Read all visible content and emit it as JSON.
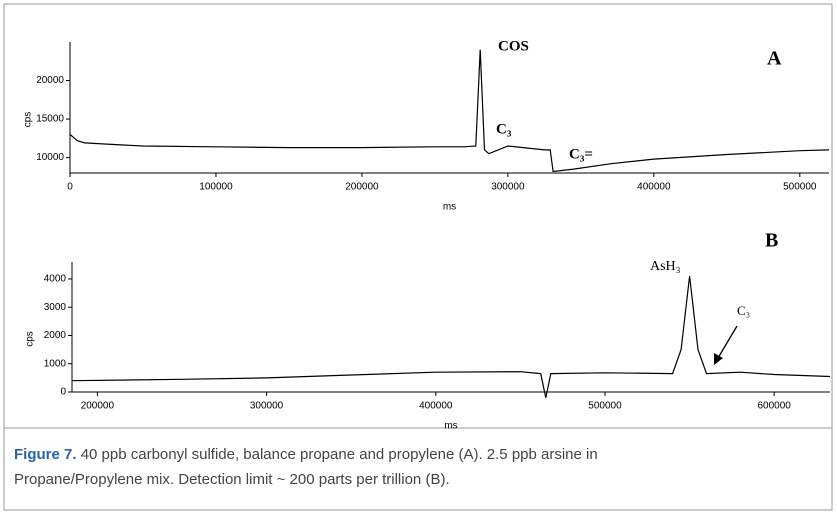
{
  "chart_data": [
    {
      "type": "line",
      "xlabel": "ms",
      "ylabel": "cps",
      "xlim": [
        0,
        520000
      ],
      "ylim": [
        8000,
        25000
      ],
      "xticks": [
        0,
        100000,
        200000,
        300000,
        400000,
        500000
      ],
      "yticks": [
        10000,
        15000,
        20000
      ],
      "annotations": [
        "COS",
        "C₃",
        "C₃=",
        "A"
      ],
      "series": [
        {
          "color": "#000000",
          "x": [
            0,
            5000,
            10000,
            30000,
            50000,
            100000,
            150000,
            200000,
            250000,
            270000,
            278000,
            281000,
            284000,
            287000,
            300000,
            325000,
            329000,
            331000,
            345000,
            370000,
            400000,
            450000,
            500000,
            520000
          ],
          "values": [
            13000,
            12200,
            11900,
            11700,
            11500,
            11400,
            11300,
            11300,
            11400,
            11400,
            11500,
            24000,
            11000,
            10500,
            11500,
            11000,
            11000,
            8200,
            8500,
            9200,
            9800,
            10400,
            10900,
            11000
          ]
        }
      ]
    },
    {
      "type": "line",
      "xlabel": "ms",
      "ylabel": "cps",
      "xlim": [
        185000,
        633000
      ],
      "ylim": [
        0,
        4600
      ],
      "xticks": [
        200000,
        300000,
        400000,
        500000,
        600000
      ],
      "yticks": [
        0,
        1000,
        2000,
        3000,
        4000
      ],
      "annotations": [
        "B",
        "AsH₃",
        "C₃"
      ],
      "series": [
        {
          "color": "#000000",
          "x": [
            185000,
            250000,
            300000,
            350000,
            400000,
            450000,
            462000,
            465000,
            468000,
            500000,
            540000,
            545000,
            550000,
            555000,
            560000,
            580000,
            600000,
            633000
          ],
          "values": [
            400,
            450,
            500,
            600,
            700,
            720,
            650,
            -200,
            650,
            680,
            650,
            1500,
            4100,
            1500,
            650,
            700,
            620,
            550
          ]
        }
      ]
    }
  ],
  "caption": {
    "label": "Figure 7.",
    "line1": "40 ppb carbonyl sulfide, balance propane and propylene (A). 2.5 ppb arsine in",
    "line2": "Propane/Propylene mix. Detection limit ~ 200 parts per trillion (B)."
  }
}
